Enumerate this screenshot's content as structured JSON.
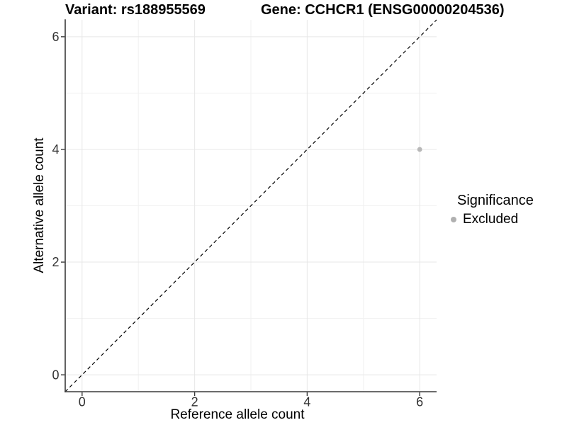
{
  "chart_data": {
    "type": "scatter",
    "titles": {
      "left": "Variant: rs188955569",
      "right": "Gene: CCHCR1 (ENSG00000204536)"
    },
    "xlabel": "Reference allele count",
    "ylabel": "Alternative allele count",
    "xlim": [
      -0.3,
      6.3
    ],
    "ylim": [
      -0.3,
      6.3
    ],
    "x_major_ticks": [
      0,
      2,
      4,
      6
    ],
    "x_minor_ticks": [
      1,
      3,
      5
    ],
    "y_major_ticks": [
      0,
      2,
      4,
      6
    ],
    "y_minor_ticks": [
      1,
      3,
      5
    ],
    "grid": "major+minor",
    "points": [
      {
        "x": 6,
        "y": 4,
        "series": "Excluded"
      }
    ],
    "reference_line": {
      "kind": "identity",
      "slope": 1,
      "intercept": 0,
      "style": "dashed",
      "color": "#000000"
    },
    "legend": {
      "title": "Significance",
      "position": "right",
      "entries": [
        {
          "label": "Excluded",
          "color": "#b0b0b0"
        }
      ]
    },
    "colors": {
      "point": "#b8b8b8",
      "grid_major": "#e7e7e7",
      "grid_minor": "#f1f1f1",
      "axis": "#3a3a3a",
      "tick_text": "#333333"
    }
  }
}
